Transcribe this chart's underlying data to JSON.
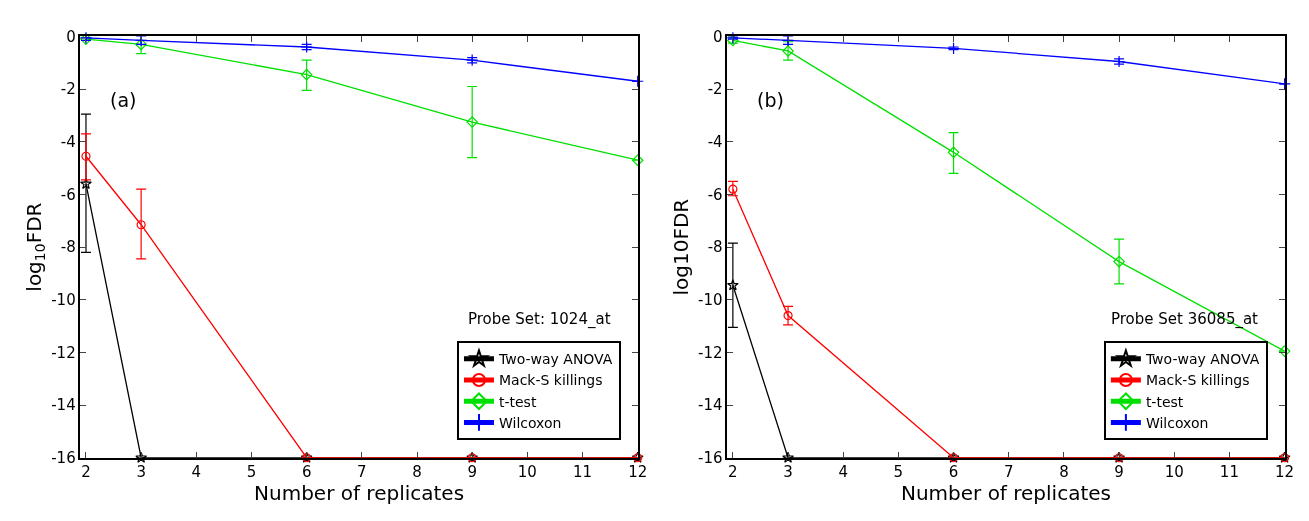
{
  "chart_data": [
    {
      "type": "line",
      "xlabel": "Number of replicates",
      "ylabel": "log$_{10}$FDR",
      "annotations": [
        "(a)",
        "Probe Set: 1024_at"
      ],
      "x": [
        2,
        3,
        6,
        9,
        12
      ],
      "xlim": [
        1.9,
        12
      ],
      "xticks": [
        2,
        3,
        4,
        5,
        6,
        7,
        8,
        9,
        10,
        11,
        12
      ],
      "ylim": [
        -16,
        0
      ],
      "yticks": [
        -16,
        -14,
        -12,
        -10,
        -8,
        -6,
        -4,
        -2,
        0
      ],
      "legend": "bottom right",
      "line_style": "solid",
      "series": [
        {
          "name": "Two-way ANOVA",
          "color": "#000000",
          "marker": "star",
          "values": [
            -5.6,
            -16,
            -16,
            -16,
            -16
          ],
          "errors": [
            [
              -8.2,
              -2.95
            ],
            null,
            null,
            null,
            null
          ]
        },
        {
          "name": "Mack-S killings",
          "color": "#ff0000",
          "marker": "circle",
          "values": [
            -4.55,
            -7.15,
            -16,
            -16,
            -16
          ],
          "errors": [
            [
              -5.45,
              -3.7
            ],
            [
              -8.45,
              -5.8
            ],
            null,
            null,
            null
          ]
        },
        {
          "name": "t-test",
          "color": "#00e000",
          "marker": "diamond",
          "values": [
            -0.1,
            -0.3,
            -1.45,
            -3.25,
            -4.7
          ],
          "errors": [
            [
              -0.15,
              -0.05
            ],
            [
              -0.65,
              0.05
            ],
            [
              -2.05,
              -0.9
            ],
            [
              -4.6,
              -1.9
            ],
            null
          ]
        },
        {
          "name": "Wilcoxon",
          "color": "#0000ff",
          "marker": "cross",
          "values": [
            -0.05,
            -0.15,
            -0.4,
            -0.9,
            -1.7
          ],
          "errors": [
            [
              -0.15,
              0.05
            ],
            [
              -0.3,
              0.0
            ],
            [
              -0.5,
              -0.3
            ],
            [
              -1.0,
              -0.8
            ],
            null
          ]
        }
      ]
    },
    {
      "type": "line",
      "xlabel": "Number of replicates",
      "ylabel": "log10FDR",
      "annotations": [
        "(b)",
        "Probe Set 36085_at"
      ],
      "x": [
        2,
        3,
        6,
        9,
        12
      ],
      "xlim": [
        1.9,
        12
      ],
      "xticks": [
        2,
        3,
        4,
        5,
        6,
        7,
        8,
        9,
        10,
        11,
        12
      ],
      "ylim": [
        -16,
        0
      ],
      "yticks": [
        -16,
        -14,
        -12,
        -10,
        -8,
        -6,
        -4,
        -2,
        0
      ],
      "legend": "bottom right",
      "line_style": "solid",
      "series": [
        {
          "name": "Two-way ANOVA",
          "color": "#000000",
          "marker": "star",
          "values": [
            -9.45,
            -16,
            -16,
            -16,
            -16
          ],
          "errors": [
            [
              -11.05,
              -7.85
            ],
            null,
            null,
            null,
            null
          ]
        },
        {
          "name": "Mack-S killings",
          "color": "#ff0000",
          "marker": "circle",
          "values": [
            -5.8,
            -10.6,
            -16,
            -16,
            -16
          ],
          "errors": [
            [
              -6.05,
              -5.5
            ],
            [
              -10.95,
              -10.25
            ],
            null,
            null,
            null
          ]
        },
        {
          "name": "t-test",
          "color": "#00e000",
          "marker": "diamond",
          "values": [
            -0.15,
            -0.55,
            -4.4,
            -8.55,
            -11.95
          ],
          "errors": [
            [
              -0.25,
              -0.05
            ],
            [
              -0.9,
              -0.2
            ],
            [
              -5.2,
              -3.65
            ],
            [
              -9.4,
              -7.7
            ],
            null
          ]
        },
        {
          "name": "Wilcoxon",
          "color": "#0000ff",
          "marker": "cross",
          "values": [
            -0.05,
            -0.15,
            -0.45,
            -0.95,
            -1.8
          ],
          "errors": [
            [
              -0.1,
              0.0
            ],
            [
              -0.3,
              0.0
            ],
            [
              -0.5,
              -0.4
            ],
            [
              -1.05,
              -0.85
            ],
            null
          ]
        }
      ]
    }
  ]
}
